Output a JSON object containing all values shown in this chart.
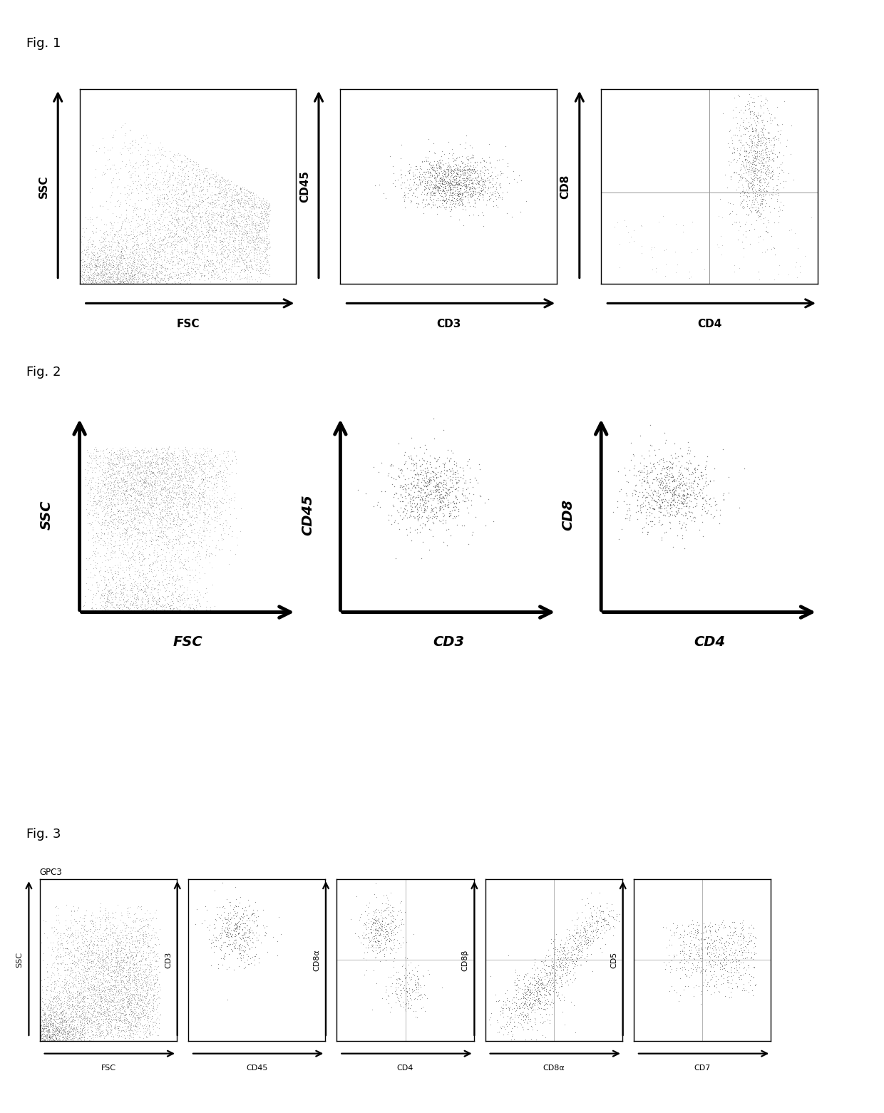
{
  "fig_labels": [
    "Fig. 1",
    "Fig. 2",
    "Fig. 3"
  ],
  "fig1": {
    "panels": [
      {
        "xlabel": "FSC",
        "ylabel": "SSC"
      },
      {
        "xlabel": "CD3",
        "ylabel": "CD45"
      },
      {
        "xlabel": "CD4",
        "ylabel": "CD8"
      }
    ],
    "arrow_fontsize": 11,
    "arrow_bold": true,
    "arrow_italic": false,
    "arrow_lw": 2.5
  },
  "fig2": {
    "panels": [
      {
        "xlabel": "FSC",
        "ylabel": "SSC"
      },
      {
        "xlabel": "CD3",
        "ylabel": "CD45"
      },
      {
        "xlabel": "CD4",
        "ylabel": "CD8"
      }
    ],
    "arrow_fontsize": 14,
    "arrow_bold": true,
    "arrow_italic": true,
    "arrow_lw": 3.5
  },
  "fig3": {
    "panels": [
      {
        "xlabel": "FSC",
        "ylabel": "SSC",
        "toplabel": "GPC3"
      },
      {
        "xlabel": "CD45",
        "ylabel": "CD3"
      },
      {
        "xlabel": "CD4",
        "ylabel": "CD8α"
      },
      {
        "xlabel": "CD8α",
        "ylabel": "CD8β"
      },
      {
        "xlabel": "CD7",
        "ylabel": "CD5"
      }
    ],
    "arrow_fontsize": 8,
    "arrow_bold": false,
    "arrow_italic": false,
    "arrow_lw": 1.8
  },
  "dot_color": "#333333",
  "gate_color": "#999999"
}
